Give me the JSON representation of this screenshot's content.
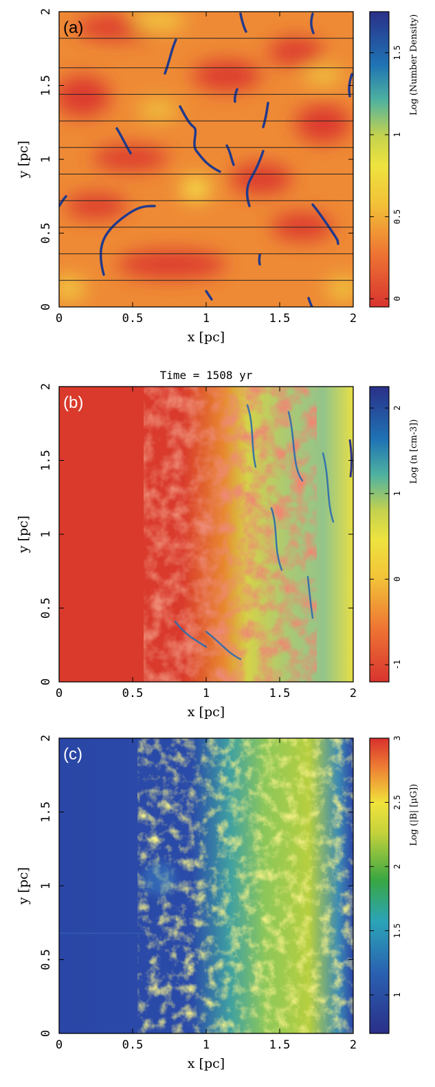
{
  "chart_data": [
    {
      "type": "heatmap",
      "panel_label": "(a)",
      "title": "",
      "xlabel": "x [pc]",
      "ylabel": "y [pc]",
      "xlim": [
        0,
        2
      ],
      "ylim": [
        0,
        2
      ],
      "x_ticks": [
        "0",
        "0.5",
        "1",
        "1.5",
        "2"
      ],
      "y_ticks": [
        "0",
        "0.5",
        "1",
        "1.5",
        "2"
      ],
      "colorbar": {
        "label": "Log (Number Density)",
        "ticks": [
          "0",
          "0.5",
          "1",
          "1.5"
        ],
        "range": [
          -0.05,
          1.75
        ],
        "colormap": "red-yellow-green-blue"
      },
      "horizontal_lines_y": [
        0.18,
        0.36,
        0.54,
        0.72,
        0.9,
        1.08,
        1.26,
        1.44,
        1.62,
        1.82
      ],
      "description_values": "clumpy density field ~0-0.5 with thin dense filaments up to ~1.7"
    },
    {
      "type": "heatmap",
      "panel_label": "(b)",
      "title": "Time = 1508 yr",
      "xlabel": "x [pc]",
      "ylabel": "y [pc]",
      "xlim": [
        0,
        2
      ],
      "ylim": [
        0,
        2
      ],
      "x_ticks": [
        "0",
        "0.5",
        "1",
        "1.5",
        "2"
      ],
      "y_ticks": [
        "0",
        "0.5",
        "1",
        "1.5",
        "2"
      ],
      "colorbar": {
        "label": "Log (n [cm-3])",
        "ticks": [
          "-1",
          "0",
          "1",
          "2"
        ],
        "range": [
          -1.2,
          2.25
        ],
        "colormap": "red-yellow-green-blue"
      }
    },
    {
      "type": "heatmap",
      "panel_label": "(c)",
      "title": "",
      "xlabel": "x [pc]",
      "ylabel": "y [pc]",
      "xlim": [
        0,
        2
      ],
      "ylim": [
        0,
        2
      ],
      "x_ticks": [
        "0",
        "0.5",
        "1",
        "1.5",
        "2"
      ],
      "y_ticks": [
        "0",
        "0.5",
        "1",
        "1.5",
        "2"
      ],
      "colorbar": {
        "label": "Log (|B| [μG])",
        "ticks": [
          "1",
          "1.5",
          "2",
          "2.5",
          "3"
        ],
        "range": [
          0.7,
          3.0
        ],
        "colormap": "blue-green-yellow-red"
      }
    }
  ]
}
